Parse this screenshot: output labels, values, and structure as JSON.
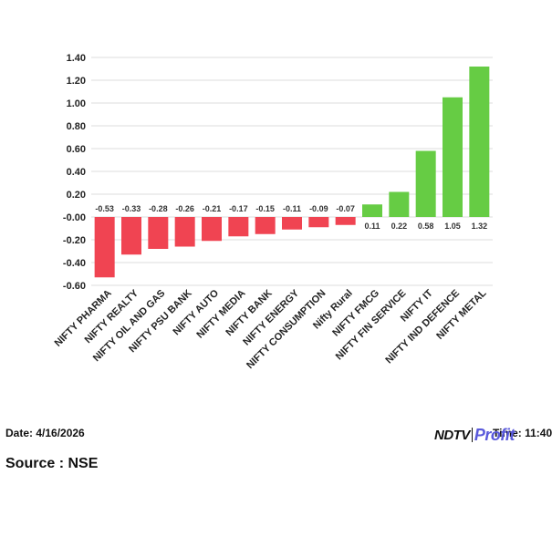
{
  "chart_data": {
    "type": "bar",
    "categories": [
      "NIFTY PHARMA",
      "NIFTY REALTY",
      "NIFTY OIL AND GAS",
      "NIFTY PSU BANK",
      "NIFTY AUTO",
      "NIFTY MEDIA",
      "NIFTY BANK",
      "NIFTY ENERGY",
      "NIFTY CONSUMPTION",
      "Nifty Rural",
      "NIFTY FMCG",
      "NIFTY FIN SERVICE",
      "NIFTY IT",
      "NIFTY IND DEFENCE",
      "NIFTY METAL"
    ],
    "values": [
      -0.53,
      -0.33,
      -0.28,
      -0.26,
      -0.21,
      -0.17,
      -0.15,
      -0.11,
      -0.09,
      -0.07,
      0.11,
      0.22,
      0.58,
      1.05,
      1.32
    ],
    "value_labels": [
      "-0.53",
      "-0.33",
      "-0.28",
      "-0.26",
      "-0.21",
      "-0.17",
      "-0.15",
      "-0.11",
      "-0.09",
      "-0.07",
      "0.11",
      "0.22",
      "0.58",
      "1.05",
      "1.32"
    ],
    "y_ticks": [
      1.4,
      1.2,
      1.0,
      0.8,
      0.6,
      0.4,
      0.2,
      0.0,
      -0.2,
      -0.4,
      -0.6
    ],
    "y_tick_labels": [
      "1.40",
      "1.20",
      "1.00",
      "0.80",
      "0.60",
      "0.40",
      "0.20",
      "-0.00",
      "-0.20",
      "-0.40",
      "-0.60"
    ],
    "ylim": [
      -0.6,
      1.4
    ],
    "grid": true,
    "colors": {
      "positive": "#66cc44",
      "negative": "#f04452",
      "grid": "#dddddd"
    }
  },
  "footer": {
    "date": "Date: 4/16/2026",
    "time": "Time: 11:40",
    "source": "Source : NSE"
  },
  "logo": {
    "left": "NDTV",
    "right": "Profit"
  }
}
